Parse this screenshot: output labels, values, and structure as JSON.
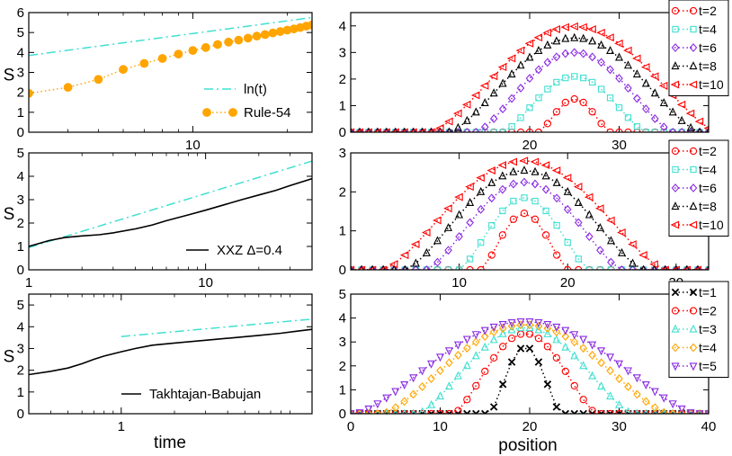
{
  "figure": {
    "left_xlabel": "time",
    "right_xlabel": "position"
  },
  "chart_data": [
    {
      "id": "p1",
      "type": "line",
      "xscale": "log",
      "xlim": [
        3,
        24
      ],
      "ylim": [
        0,
        6
      ],
      "xticks": [
        10
      ],
      "yticks": [
        0,
        1,
        2,
        3,
        4,
        5,
        6
      ],
      "ylabel": "S",
      "legend_position": "bottom-right",
      "series": [
        {
          "name": "ln(t)",
          "color": "#40e0d0",
          "style": "dashdot",
          "marker": "none",
          "x": [
            3,
            24
          ],
          "y": [
            3.85,
            5.75
          ]
        },
        {
          "name": "Rule-54",
          "color": "#ffa500",
          "style": "dotted",
          "marker": "filled-circle",
          "x": [
            3,
            4,
            5,
            6,
            7,
            8,
            9,
            10,
            11,
            12,
            13,
            14,
            15,
            16,
            17,
            18,
            19,
            20,
            21,
            22,
            23,
            24
          ],
          "y": [
            1.95,
            2.25,
            2.65,
            3.15,
            3.45,
            3.7,
            3.92,
            4.1,
            4.25,
            4.4,
            4.52,
            4.62,
            4.72,
            4.82,
            4.9,
            4.98,
            5.05,
            5.12,
            5.18,
            5.25,
            5.32,
            5.38
          ]
        }
      ]
    },
    {
      "id": "p2",
      "type": "line",
      "xscale": "log",
      "xlim": [
        1,
        40
      ],
      "ylim": [
        0,
        5
      ],
      "xticks": [
        1,
        10
      ],
      "yticks": [
        0,
        1,
        2,
        3,
        4,
        5
      ],
      "ylabel": "S",
      "legend_position": "bottom-right",
      "series": [
        {
          "name": "",
          "color": "#40e0d0",
          "style": "dashdot",
          "marker": "none",
          "x": [
            1,
            40
          ],
          "y": [
            0.95,
            4.65
          ]
        },
        {
          "name": "XXZ Δ=0.4",
          "color": "#000000",
          "style": "solid",
          "marker": "none",
          "x": [
            1,
            1.3,
            1.6,
            2,
            2.5,
            3,
            4,
            5,
            6,
            8,
            10,
            13,
            16,
            20,
            25,
            30,
            40
          ],
          "y": [
            1.0,
            1.25,
            1.38,
            1.45,
            1.5,
            1.58,
            1.75,
            1.92,
            2.1,
            2.35,
            2.55,
            2.8,
            3.0,
            3.2,
            3.4,
            3.6,
            3.9
          ]
        }
      ]
    },
    {
      "id": "p3",
      "type": "line",
      "xscale": "log",
      "xlim": [
        0.3,
        12
      ],
      "ylim": [
        0,
        5.5
      ],
      "xticks": [
        1
      ],
      "yticks": [
        0,
        1,
        2,
        3,
        4,
        5
      ],
      "ylabel": "S",
      "legend_position": "bottom-right",
      "series": [
        {
          "name": "",
          "color": "#40e0d0",
          "style": "dashdot",
          "marker": "none",
          "x": [
            1,
            12
          ],
          "y": [
            3.55,
            4.35
          ]
        },
        {
          "name": "Takhtajan-Babujan",
          "color": "#000000",
          "style": "solid",
          "marker": "none",
          "x": [
            0.3,
            0.4,
            0.5,
            0.6,
            0.7,
            0.8,
            1,
            1.2,
            1.5,
            2,
            3,
            4,
            6,
            8,
            10,
            12
          ],
          "y": [
            1.8,
            1.95,
            2.1,
            2.3,
            2.5,
            2.65,
            2.85,
            3.0,
            3.15,
            3.25,
            3.38,
            3.47,
            3.6,
            3.7,
            3.8,
            3.88
          ]
        }
      ]
    },
    {
      "id": "p4",
      "type": "line",
      "xlim": [
        0,
        40
      ],
      "ylim": [
        0,
        4.5
      ],
      "xticks": [
        20,
        30
      ],
      "yticks": [
        0,
        1,
        2,
        3,
        4
      ],
      "bump": {
        "center": 25,
        "halfwidth": 4,
        "top_fraction": 0.5
      },
      "legend_position": "top-right",
      "series": [
        {
          "name": "t=2",
          "color": "#ff0000",
          "marker": "circle",
          "peak": 1.25,
          "halfwidth": 4
        },
        {
          "name": "t=4",
          "color": "#40e0d0",
          "marker": "square",
          "peak": 2.1,
          "halfwidth": 8
        },
        {
          "name": "t=6",
          "color": "#8a2be2",
          "marker": "diamond",
          "peak": 3.0,
          "halfwidth": 11
        },
        {
          "name": "t=8",
          "color": "#000000",
          "marker": "triangle-up",
          "peak": 3.55,
          "halfwidth": 14
        },
        {
          "name": "t=10",
          "color": "#ff0000",
          "marker": "triangle-left",
          "peak": 3.98,
          "halfwidth": 16
        }
      ]
    },
    {
      "id": "p5",
      "type": "line",
      "xlim": [
        0,
        33
      ],
      "ylim": [
        0,
        3
      ],
      "xticks": [
        10,
        20,
        30
      ],
      "yticks": [
        0,
        1,
        2,
        3
      ],
      "legend_position": "top-right",
      "series": [
        {
          "name": "t=2",
          "color": "#ff0000",
          "marker": "circle",
          "center": 16,
          "peak": 1.45,
          "halfwidth": 4
        },
        {
          "name": "t=4",
          "color": "#40e0d0",
          "marker": "square",
          "center": 16,
          "peak": 1.85,
          "halfwidth": 6
        },
        {
          "name": "t=6",
          "color": "#8a2be2",
          "marker": "diamond",
          "center": 16,
          "peak": 2.25,
          "halfwidth": 9
        },
        {
          "name": "t=8",
          "color": "#000000",
          "marker": "triangle-up",
          "center": 16,
          "peak": 2.55,
          "halfwidth": 11
        },
        {
          "name": "t=10",
          "color": "#ff0000",
          "marker": "triangle-left",
          "center": 16,
          "peak": 2.8,
          "halfwidth": 13
        }
      ]
    },
    {
      "id": "p6",
      "type": "line",
      "xlim": [
        0,
        40
      ],
      "ylim": [
        0,
        5
      ],
      "xticks": [
        0,
        10,
        20,
        30,
        40
      ],
      "yticks": [
        0,
        1,
        2,
        3,
        4,
        5
      ],
      "legend_position": "top-right",
      "series": [
        {
          "name": "t=1",
          "color": "#000000",
          "marker": "x",
          "center": 19.5,
          "peak": 2.8,
          "halfwidth": 4
        },
        {
          "name": "t=2",
          "color": "#ff0000",
          "marker": "circle",
          "center": 19.5,
          "peak": 3.35,
          "halfwidth": 8
        },
        {
          "name": "t=3",
          "color": "#40e0d0",
          "marker": "triangle-up",
          "center": 19.5,
          "peak": 3.6,
          "halfwidth": 12
        },
        {
          "name": "t=4",
          "color": "#ffa500",
          "marker": "diamond",
          "center": 19.5,
          "peak": 3.72,
          "halfwidth": 16
        },
        {
          "name": "t=5",
          "color": "#8a2be2",
          "marker": "triangle-down",
          "center": 19.5,
          "peak": 3.85,
          "halfwidth": 19
        }
      ]
    }
  ]
}
